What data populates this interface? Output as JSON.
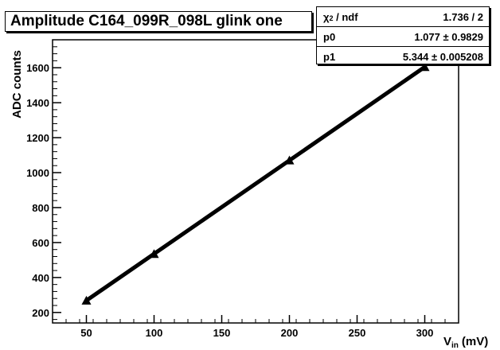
{
  "chart_data": {
    "type": "scatter",
    "title": "Amplitude C164_099R_098L glink one",
    "xlabel_base": "V",
    "xlabel_sub": "in",
    "xlabel_unit": "(mV)",
    "ylabel": "ADC counts",
    "xlim": [
      25,
      325
    ],
    "ylim": [
      140,
      1760
    ],
    "x_ticks": [
      50,
      100,
      150,
      200,
      250,
      300
    ],
    "y_ticks": [
      200,
      400,
      600,
      800,
      1000,
      1200,
      1400,
      1600
    ],
    "y_tick_labels": [
      "200",
      "400",
      "600",
      "800",
      "1000",
      "1200",
      "1400",
      "1600"
    ],
    "points": [
      {
        "x": 50,
        "y": 268
      },
      {
        "x": 100,
        "y": 535
      },
      {
        "x": 200,
        "y": 1070
      },
      {
        "x": 300,
        "y": 1604
      }
    ],
    "fit": {
      "p0": 1.077,
      "p1": 5.344
    }
  },
  "stats": {
    "chi2_symbol": "χ",
    "chi2_sup": "2",
    "chi2_rest": " / ndf",
    "chi2_value": "1.736 / 2",
    "p0_label": "p0",
    "p0_value": "1.077 ± 0.9829",
    "p1_label": "p1",
    "p1_value": "5.344 ± 0.005208"
  }
}
